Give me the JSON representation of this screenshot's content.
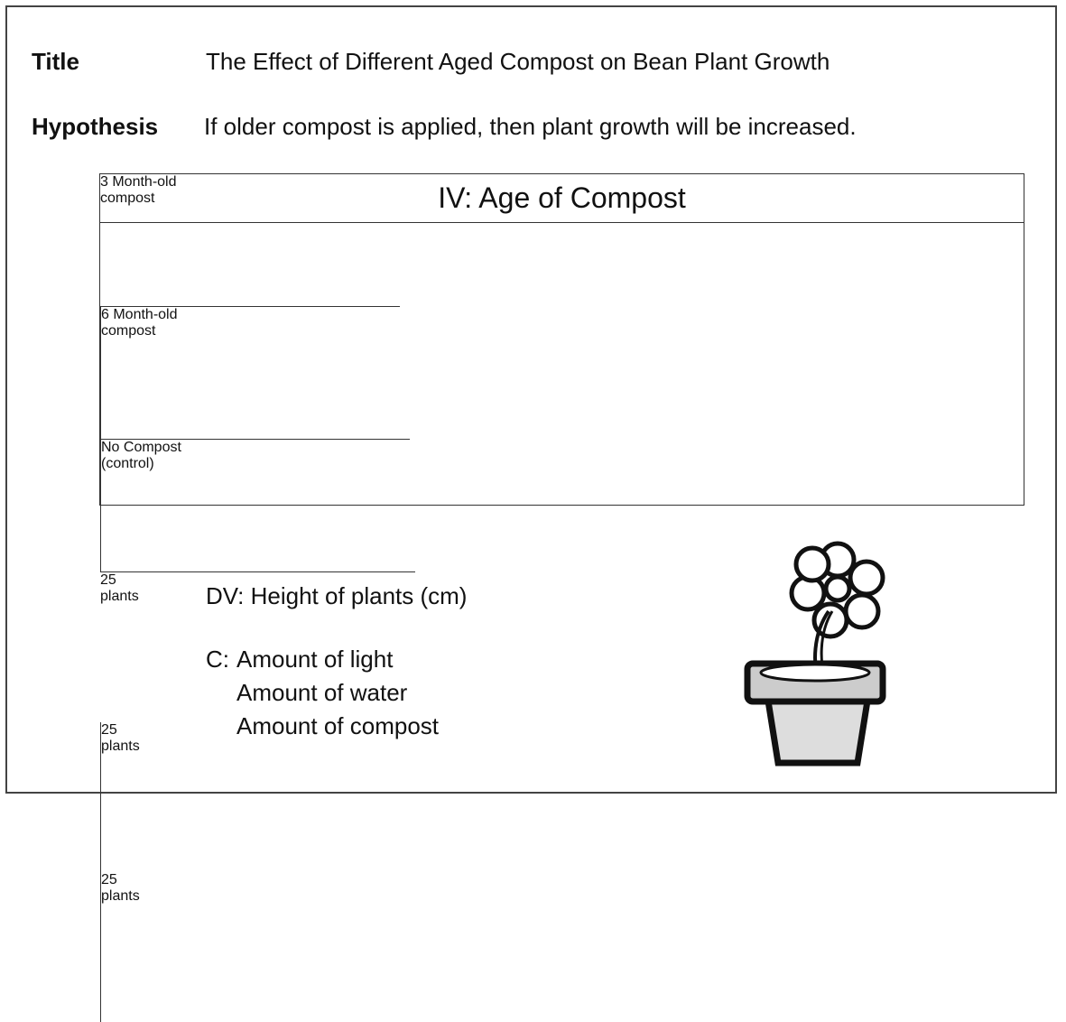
{
  "title": {
    "label": "Title",
    "text": "The Effect of Different Aged Compost on Bean Plant Growth"
  },
  "hypothesis": {
    "label": "Hypothesis",
    "text": "If older compost is applied, then plant growth will be increased."
  },
  "table": {
    "header": "IV: Age of Compost",
    "columns": [
      [
        "3 Month-old",
        "compost"
      ],
      [
        "6 Month-old",
        "compost"
      ],
      [
        "No Compost",
        "(control)"
      ]
    ],
    "counts": [
      [
        "25",
        "plants"
      ],
      [
        "25",
        "plants"
      ],
      [
        "25",
        "plants"
      ]
    ]
  },
  "dv": "DV: Height of plants (cm)",
  "constants": {
    "label": "C:",
    "items": [
      "Amount of light",
      "Amount of water",
      "Amount of compost"
    ]
  }
}
